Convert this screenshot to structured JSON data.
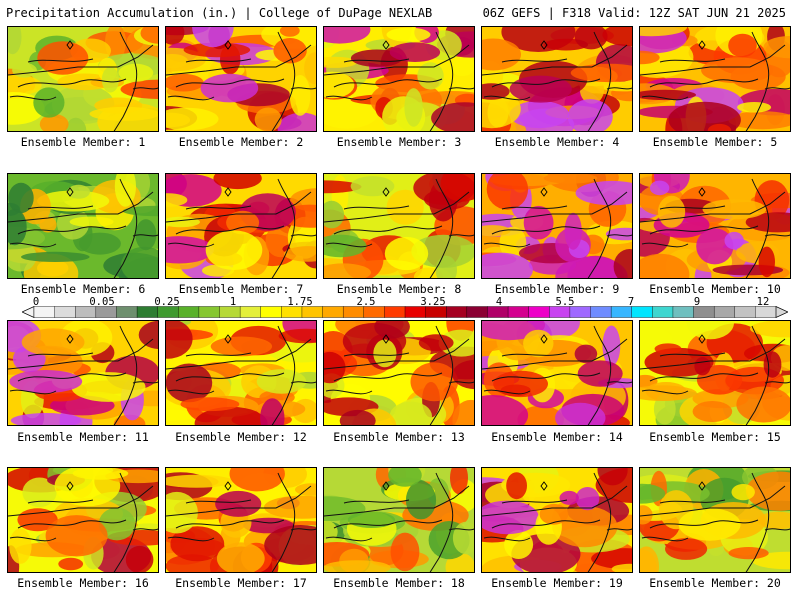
{
  "header": {
    "title": "Precipitation Accumulation (in.) | College of DuPage NEXLAB",
    "run_info": "06Z GEFS | F318 Valid: 12Z SAT JUN 21 2025"
  },
  "panels": [
    {
      "label": "Ensemble Member: 1",
      "intensity": 0.45
    },
    {
      "label": "Ensemble Member: 2",
      "intensity": 0.7
    },
    {
      "label": "Ensemble Member: 3",
      "intensity": 0.62
    },
    {
      "label": "Ensemble Member: 4",
      "intensity": 0.72
    },
    {
      "label": "Ensemble Member: 5",
      "intensity": 0.75
    },
    {
      "label": "Ensemble Member: 6",
      "intensity": 0.25
    },
    {
      "label": "Ensemble Member: 7",
      "intensity": 0.68
    },
    {
      "label": "Ensemble Member: 8",
      "intensity": 0.5
    },
    {
      "label": "Ensemble Member: 9",
      "intensity": 0.8
    },
    {
      "label": "Ensemble Member: 10",
      "intensity": 0.78
    },
    {
      "label": "Ensemble Member: 11",
      "intensity": 0.7
    },
    {
      "label": "Ensemble Member: 12",
      "intensity": 0.6
    },
    {
      "label": "Ensemble Member: 13",
      "intensity": 0.58
    },
    {
      "label": "Ensemble Member: 14",
      "intensity": 0.74
    },
    {
      "label": "Ensemble Member: 15",
      "intensity": 0.55
    },
    {
      "label": "Ensemble Member: 16",
      "intensity": 0.55
    },
    {
      "label": "Ensemble Member: 17",
      "intensity": 0.62
    },
    {
      "label": "Ensemble Member: 18",
      "intensity": 0.4
    },
    {
      "label": "Ensemble Member: 19",
      "intensity": 0.66
    },
    {
      "label": "Ensemble Member: 20",
      "intensity": 0.42
    }
  ],
  "colorbar": {
    "labels": [
      "0",
      "0.05",
      "0.25",
      "1",
      "1.75",
      "2.5",
      "3.25",
      "4",
      "5.5",
      "7",
      "9",
      "12"
    ],
    "colors": [
      "#f4f4f4",
      "#dcdcdc",
      "#bdbdbd",
      "#9a9a9a",
      "#6e8f6e",
      "#2e7d32",
      "#3f9a2f",
      "#59b12a",
      "#86c731",
      "#b6d936",
      "#e4ef3a",
      "#ffff00",
      "#ffe000",
      "#ffc400",
      "#ffa800",
      "#ff8c00",
      "#ff6a00",
      "#ff3b00",
      "#e80000",
      "#c80000",
      "#a50021",
      "#8b0033",
      "#b00068",
      "#d4008f",
      "#ee00c8",
      "#c844f0",
      "#9f69ff",
      "#6f8cff",
      "#37b6ff",
      "#00e5ff",
      "#3ed6d0",
      "#6fbfbf",
      "#8f8f8f",
      "#a8a8a8",
      "#c2c2c2",
      "#d8d8d8"
    ]
  }
}
